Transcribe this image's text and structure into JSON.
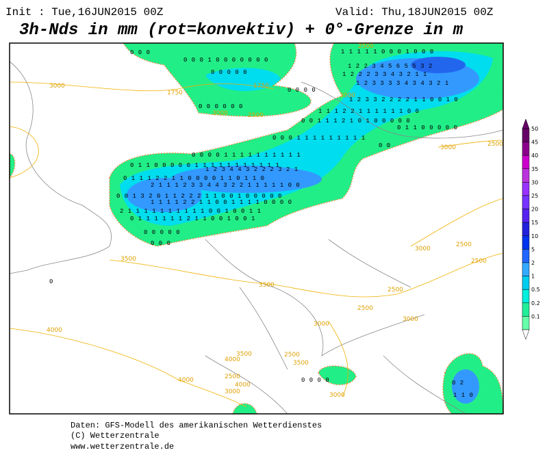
{
  "header": {
    "init": "Init : Tue,16JUN2015 00Z",
    "valid": "Valid: Thu,18JUN2015 00Z",
    "title": "3h-Nds in mm (rot=konvektiv) + 0°-Grenze in m"
  },
  "map": {
    "contour_labels": [
      "3000",
      "1750",
      "1750",
      "3000",
      "2500",
      "3000",
      "3000",
      "2500",
      "3000",
      "2500",
      "2500",
      "3500",
      "3500",
      "2500",
      "2500",
      "3000",
      "3000",
      "4000",
      "3500",
      "4000",
      "2500",
      "3500",
      "4000",
      "2500",
      "4000",
      "3000",
      "3000",
      "2500"
    ],
    "precip_rows": [
      "0 0 0",
      "0 0 0 1 0 0 0 0 0 0 0",
      "1 1 1 1 1 0 0 0 1 0 0 0",
      "1 2 2 3 4 5 6 5 5 3 2",
      "0 0 0 0 0",
      "1 2 2 2 3 3 4 3 2 1 1",
      "1 2 3 3 3 3 4 3 4 3 2 1",
      "0 0 0 0",
      "1 2 3 3 2 2 2 2 1 1 0 0 1 0",
      "0 0 0 0 0 0",
      "1 1 1 2 2 1 1 1 1 1 1 0 0",
      "0 0 1 1 1 2 1 0 1 0 0 0 0 0",
      "0 1 1 0 0 0 0 0",
      "0 0 0 1 1 1 1 1 1 1 1 1",
      "0 0",
      "0 0 0 0 1 1 1 1 1 1 1 1 1 1",
      "0 1 1 0 0 0 0 0 1 1 1 1 1 1 1 1 1 1 1",
      "1 2 3 4 4 3 2 2 2 3 2 1",
      "0 1 1 1 2 2 1 1 0 0 0 0 1 1 0 1 1 0",
      "2 1 1 1 2 3 3 4 4 3 2 2 1 1 1 1 1 0 0",
      "0 0 1 3 2 0 1 1 2 2 2 1 1 0 0 1 0 0 0 0 0",
      "1 1 1 1 2 2 1 1 0 0 1 1 1 1 0 0 0 0",
      "2 1 1 1 1 1 1 1 1 1 1 0 0 1 0 0 1 1",
      "0 1 1 1 1 1 1 2 1 1 0 0 1 0 0 1",
      "0 0 0 0 0",
      "0 0 0",
      "0",
      "0 0 0 0",
      "0 2",
      "1 1 0"
    ]
  },
  "legend": {
    "labels": [
      "50",
      "45",
      "40",
      "35",
      "30",
      "25",
      "20",
      "15",
      "10",
      "5",
      "2",
      "1",
      "0.5",
      "0.2",
      "0.1"
    ],
    "colors": [
      "#660066",
      "#8a008a",
      "#cc00cc",
      "#bb33dd",
      "#9933ff",
      "#7733ff",
      "#5522ee",
      "#2222dd",
      "#0033ee",
      "#2266ff",
      "#33aaff",
      "#00ccee",
      "#00eedd",
      "#22ee99",
      "#66ffaa"
    ]
  },
  "footer": [
    "Daten: GFS-Modell des amerikanischen Wetterdienstes",
    "(C) Wetterzentrale",
    "www.wetterzentrale.de"
  ]
}
